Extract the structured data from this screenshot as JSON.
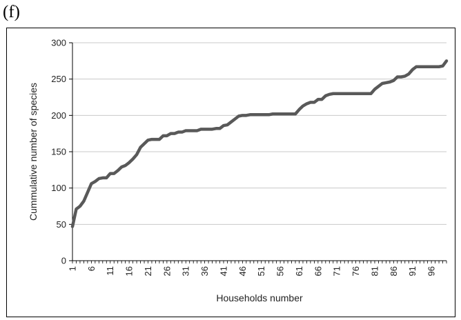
{
  "panel_label": "(f)",
  "chart_data": {
    "type": "line",
    "title": "",
    "xlabel": "Households number",
    "ylabel": "Cummulative number of species",
    "xlim": [
      1,
      100
    ],
    "ylim": [
      0,
      300
    ],
    "y_ticks": [
      0,
      50,
      100,
      150,
      200,
      250,
      300
    ],
    "x_ticks": [
      1,
      6,
      11,
      16,
      21,
      26,
      31,
      36,
      41,
      46,
      51,
      56,
      61,
      66,
      71,
      76,
      81,
      86,
      91,
      96
    ],
    "grid": "horizontal",
    "legend": "none",
    "line_color": "#595959",
    "series": [
      {
        "x": [
          1,
          2,
          3,
          4,
          5,
          6,
          7,
          8,
          9,
          10,
          11,
          12,
          13,
          14,
          15,
          16,
          17,
          18,
          19,
          20,
          21,
          22,
          23,
          24,
          25,
          26,
          27,
          28,
          29,
          30,
          31,
          32,
          33,
          34,
          35,
          36,
          37,
          38,
          39,
          40,
          41,
          42,
          43,
          44,
          45,
          46,
          47,
          48,
          49,
          50,
          51,
          52,
          53,
          54,
          55,
          56,
          57,
          58,
          59,
          60,
          61,
          62,
          63,
          64,
          65,
          66,
          67,
          68,
          69,
          70,
          71,
          72,
          73,
          74,
          75,
          76,
          77,
          78,
          79,
          80,
          81,
          82,
          83,
          84,
          85,
          86,
          87,
          88,
          89,
          90,
          91,
          92,
          93,
          94,
          95,
          96,
          97,
          98,
          99,
          100
        ],
        "values": [
          47,
          71,
          75,
          82,
          94,
          106,
          109,
          113,
          114,
          114,
          120,
          120,
          124,
          129,
          131,
          135,
          140,
          146,
          156,
          161,
          166,
          167,
          167,
          167,
          172,
          172,
          175,
          175,
          177,
          177,
          179,
          179,
          179,
          179,
          181,
          181,
          181,
          181,
          182,
          182,
          186,
          187,
          191,
          195,
          199,
          200,
          200,
          201,
          201,
          201,
          201,
          201,
          201,
          202,
          202,
          202,
          202,
          202,
          202,
          202,
          208,
          213,
          216,
          218,
          218,
          222,
          222,
          227,
          229,
          230,
          230,
          230,
          230,
          230,
          230,
          230,
          230,
          230,
          230,
          230,
          236,
          240,
          244,
          245,
          246,
          248,
          253,
          253,
          254,
          257,
          263,
          267,
          267,
          267,
          267,
          267,
          267,
          267,
          268,
          275
        ]
      }
    ]
  }
}
